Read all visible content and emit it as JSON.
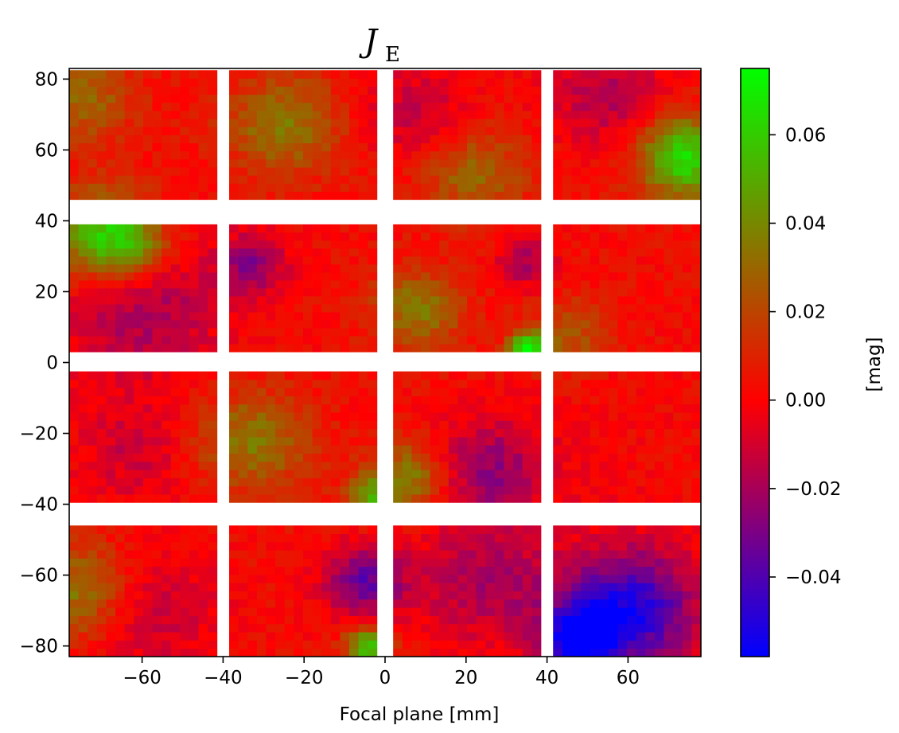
{
  "chart_data": {
    "type": "heatmap",
    "title": "J",
    "title_subscript": "E",
    "xlabel": "Focal plane  [mm]",
    "ylabel": "",
    "xlim": [
      -78,
      78
    ],
    "ylim": [
      -83,
      83
    ],
    "x_ticks": [
      -60,
      -40,
      -20,
      0,
      20,
      40,
      60
    ],
    "x_tick_labels": [
      "−60",
      "−40",
      "−20",
      "0",
      "20",
      "40",
      "60"
    ],
    "y_ticks": [
      -80,
      -60,
      -40,
      -20,
      0,
      20,
      40,
      60,
      80
    ],
    "y_tick_labels": [
      "−80",
      "−60",
      "−40",
      "−20",
      "0",
      "20",
      "40",
      "60",
      "80"
    ],
    "colorbar": {
      "label": "[mag]",
      "range": [
        -0.058,
        0.075
      ],
      "ticks": [
        -0.04,
        -0.02,
        0.0,
        0.02,
        0.04,
        0.06
      ],
      "tick_labels": [
        "−0.04",
        "−0.02",
        "0.00",
        "0.02",
        "0.04",
        "0.06"
      ],
      "colors": [
        "#0000ff",
        "#ff0000",
        "#00ff00"
      ]
    },
    "detectors": {
      "x_ranges": [
        [
          -78,
          -41.5
        ],
        [
          -38.5,
          -2
        ],
        [
          2,
          38.5
        ],
        [
          41.5,
          78
        ]
      ],
      "y_ranges": [
        [
          46,
          82.5
        ],
        [
          3,
          39
        ],
        [
          -39.5,
          -2.5
        ],
        [
          -83,
          -46
        ]
      ],
      "grid": [
        16,
        16
      ]
    },
    "features": [
      {
        "x": -75,
        "y": 75,
        "r": 9,
        "v": 0.03
      },
      {
        "x": -70,
        "y": 36,
        "r": 9,
        "v": 0.055
      },
      {
        "x": -62,
        "y": 33,
        "r": 6,
        "v": 0.03
      },
      {
        "x": -60,
        "y": 15,
        "r": 14,
        "v": -0.02
      },
      {
        "x": -62,
        "y": -25,
        "r": 10,
        "v": -0.012
      },
      {
        "x": -75,
        "y": -65,
        "r": 10,
        "v": 0.04
      },
      {
        "x": -60,
        "y": -70,
        "r": 12,
        "v": -0.018
      },
      {
        "x": -25,
        "y": 67,
        "r": 10,
        "v": 0.035
      },
      {
        "x": -33,
        "y": 28,
        "r": 6,
        "v": -0.025
      },
      {
        "x": -33,
        "y": -22,
        "r": 10,
        "v": 0.035
      },
      {
        "x": -5,
        "y": -62,
        "r": 7,
        "v": -0.035
      },
      {
        "x": -4,
        "y": -80,
        "r": 4,
        "v": 0.06
      },
      {
        "x": -4,
        "y": -38,
        "r": 4,
        "v": 0.04
      },
      {
        "x": 8,
        "y": 70,
        "r": 9,
        "v": -0.015
      },
      {
        "x": 22,
        "y": 53,
        "r": 9,
        "v": 0.03
      },
      {
        "x": 8,
        "y": 15,
        "r": 8,
        "v": 0.035
      },
      {
        "x": 35,
        "y": 4,
        "r": 3,
        "v": 0.075
      },
      {
        "x": 35,
        "y": 28,
        "r": 5,
        "v": -0.02
      },
      {
        "x": 6,
        "y": -32,
        "r": 7,
        "v": 0.04
      },
      {
        "x": 25,
        "y": -30,
        "r": 10,
        "v": -0.025
      },
      {
        "x": 25,
        "y": -62,
        "r": 12,
        "v": -0.02
      },
      {
        "x": 74,
        "y": 58,
        "r": 8,
        "v": 0.065
      },
      {
        "x": 55,
        "y": 75,
        "r": 10,
        "v": -0.018
      },
      {
        "x": 45,
        "y": 8,
        "r": 7,
        "v": 0.025
      },
      {
        "x": 60,
        "y": -70,
        "r": 12,
        "v": -0.052
      },
      {
        "x": 48,
        "y": -78,
        "r": 6,
        "v": -0.05
      },
      {
        "x": 52,
        "y": -25,
        "r": 14,
        "v": 0.0
      }
    ]
  }
}
